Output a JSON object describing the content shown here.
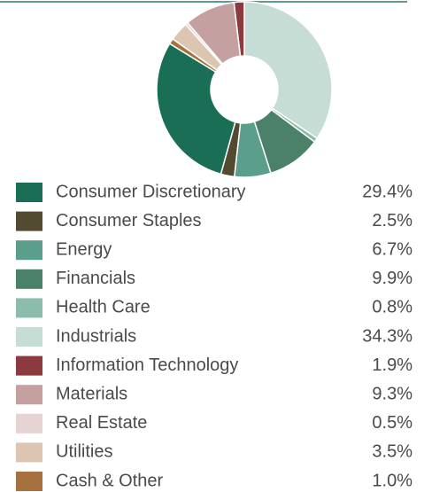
{
  "chart_data": {
    "type": "donut",
    "categories": [
      "Consumer Discretionary",
      "Consumer Staples",
      "Energy",
      "Financials",
      "Health Care",
      "Industrials",
      "Information Technology",
      "Materials",
      "Real Estate",
      "Utilities",
      "Cash & Other"
    ],
    "values": [
      29.4,
      2.5,
      6.7,
      9.9,
      0.8,
      34.3,
      1.9,
      9.3,
      0.5,
      3.5,
      1.0
    ],
    "value_labels": [
      "29.4%",
      "2.5%",
      "6.7%",
      "9.9%",
      "0.8%",
      "34.3%",
      "1.9%",
      "9.3%",
      "0.5%",
      "3.5%",
      "1.0%"
    ],
    "colors": [
      "#1a6e55",
      "#524a31",
      "#5a9e8b",
      "#4b8069",
      "#8cbcab",
      "#c5ddd4",
      "#8b3a3e",
      "#c4a0a0",
      "#e6d3d3",
      "#ddc6b1",
      "#a6703f"
    ]
  }
}
